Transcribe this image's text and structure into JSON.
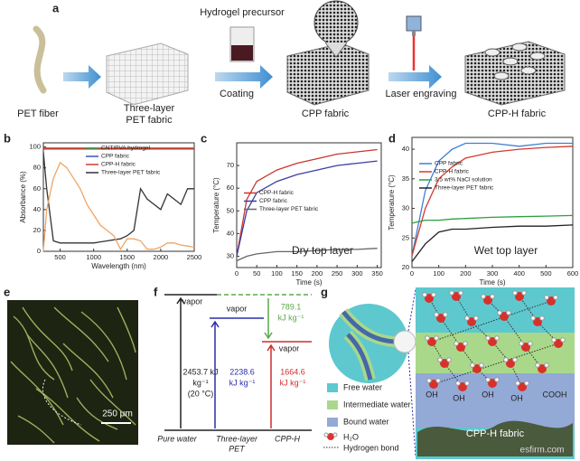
{
  "panel_labels": [
    "a",
    "b",
    "c",
    "d",
    "e",
    "f",
    "g"
  ],
  "panel_a": {
    "precursor": "Hydrogel precursor",
    "pet_fiber": "PET fiber",
    "three_layer": [
      "Three-layer",
      "PET fabric"
    ],
    "coating": "Coating",
    "cpp": "CPP fabric",
    "laser": "Laser engraving",
    "cpp_h": "CPP-H fabric"
  },
  "chart_data": [
    {
      "type": "line",
      "xlabel": "Wavelength (nm)",
      "ylabel": "Absorbance (%)",
      "legend": "upper right",
      "x": [
        250,
        300,
        400,
        500,
        600,
        700,
        800,
        900,
        1000,
        1100,
        1200,
        1300,
        1400,
        1500,
        1600,
        1700,
        1800,
        1900,
        2000,
        2100,
        2200,
        2300,
        2400,
        2500
      ],
      "xlim": [
        250,
        2500
      ],
      "xticks": [
        500,
        1000,
        1500,
        2000,
        2500
      ],
      "ylim": [
        0,
        104
      ],
      "yticks": [
        0,
        20,
        40,
        60,
        80,
        100
      ],
      "series": [
        {
          "name": "CNT/PVA hydrogel",
          "color": "#2e9e4f",
          "values": [
            99,
            99,
            99,
            99,
            99,
            99,
            99,
            99,
            99,
            99,
            99,
            99,
            99,
            99,
            99,
            99,
            99,
            99,
            99,
            99,
            99,
            99,
            99,
            99
          ]
        },
        {
          "name": "CPP fabric",
          "color": "#3a54b4",
          "values": [
            98,
            98,
            98,
            98,
            98,
            98,
            98,
            98,
            98,
            98,
            98,
            98,
            98,
            98,
            98,
            98,
            98,
            98,
            98,
            98,
            98,
            98,
            98,
            98
          ]
        },
        {
          "name": "CPP-H fabric",
          "color": "#d23a2f",
          "values": [
            98.5,
            98.5,
            98.5,
            98.5,
            98.5,
            98.5,
            98.5,
            98.5,
            98.5,
            98.5,
            98.5,
            98.5,
            98.5,
            98.5,
            98.5,
            98.5,
            98.5,
            98.5,
            98.5,
            98.5,
            98.5,
            98.5,
            98.5,
            98.5
          ]
        },
        {
          "name": "Three-layer PET fabric",
          "color": "#333333",
          "values": [
            95,
            60,
            10,
            8,
            8,
            8,
            8,
            8,
            8,
            9,
            10,
            11,
            12,
            15,
            20,
            60,
            50,
            45,
            40,
            55,
            50,
            45,
            60,
            60
          ]
        },
        {
          "color": "#f0a463",
          "values": [
            0,
            40,
            70,
            85,
            80,
            70,
            60,
            45,
            35,
            25,
            20,
            15,
            2,
            12,
            12,
            10,
            2,
            2,
            4,
            8,
            8,
            6,
            5,
            4
          ]
        }
      ]
    },
    {
      "type": "line",
      "xlabel": "Time (s)",
      "ylabel": "Temperature (°C)",
      "legend": "center left",
      "annotation": "Dry top layer",
      "x": [
        0,
        25,
        50,
        100,
        150,
        200,
        250,
        300,
        350
      ],
      "xlim": [
        0,
        360
      ],
      "xticks": [
        0,
        50,
        100,
        150,
        200,
        250,
        300,
        350
      ],
      "ylim": [
        25,
        80
      ],
      "yticks": [
        30,
        40,
        50,
        60,
        70
      ],
      "series": [
        {
          "name": "CPP-H fabric",
          "color": "#c9362c",
          "values": [
            30,
            55,
            63,
            68,
            71,
            73,
            75,
            76,
            77
          ]
        },
        {
          "name": "CPP fabric",
          "color": "#3a3f9e",
          "values": [
            30,
            50,
            58,
            63,
            66,
            68,
            70,
            71,
            72
          ]
        },
        {
          "name": "Three-layer PET fabric",
          "color": "#666666",
          "values": [
            28,
            30,
            31,
            32,
            32,
            32.5,
            33,
            33,
            33.5
          ]
        }
      ]
    },
    {
      "type": "line",
      "xlabel": "Time (s)",
      "ylabel": "Temperature (°C)",
      "legend": "center left",
      "annotation": "Wet top layer",
      "x": [
        0,
        50,
        100,
        150,
        200,
        300,
        400,
        500,
        600
      ],
      "xlim": [
        0,
        600
      ],
      "xticks": [
        0,
        100,
        200,
        300,
        400,
        500,
        600
      ],
      "ylim": [
        20,
        42
      ],
      "yticks": [
        20,
        25,
        30,
        35,
        40
      ],
      "series": [
        {
          "name": "CPP fabric",
          "color": "#3f7fd6",
          "values": [
            22,
            33,
            38,
            40,
            41,
            41,
            40.5,
            41,
            41
          ]
        },
        {
          "name": "CPP-H fabric",
          "color": "#d33a2e",
          "values": [
            22,
            30,
            35,
            37,
            38.5,
            39.5,
            40,
            40.3,
            40.5
          ]
        },
        {
          "name": "3.5 wt% NaCl solution",
          "color": "#2e9e3f",
          "values": [
            27.5,
            28,
            28,
            28.2,
            28.3,
            28.5,
            28.6,
            28.7,
            28.8
          ]
        },
        {
          "name": "Three-layer PET fabric",
          "color": "#222222",
          "values": [
            21,
            24,
            26,
            26.5,
            26.5,
            26.8,
            27,
            27,
            27.2
          ]
        }
      ]
    }
  ],
  "panel_e": {
    "scale": "250 μm"
  },
  "panel_f": {
    "vapor": [
      "vapor",
      "vapor",
      "vapor"
    ],
    "pure": [
      "2453.7 kJ",
      "kg⁻¹",
      "(20 °C)"
    ],
    "pet": [
      "2238.6",
      "kJ kg⁻¹"
    ],
    "diff": [
      "789.1",
      "kJ kg⁻¹"
    ],
    "cpph": [
      "1664.6",
      "kJ kg⁻¹"
    ],
    "x_labels": [
      "Pure water",
      "Three-layer",
      "PET",
      "CPP-H"
    ]
  },
  "panel_g": {
    "legend": [
      "Free water",
      "Intermediate water",
      "Bound water",
      "H₂O",
      "Hydrogen bond"
    ],
    "groups": [
      "OH",
      "OH",
      "OH",
      "OH",
      "COOH"
    ],
    "fabric": "CPP-H fabric"
  },
  "watermark": "esfirm.com"
}
